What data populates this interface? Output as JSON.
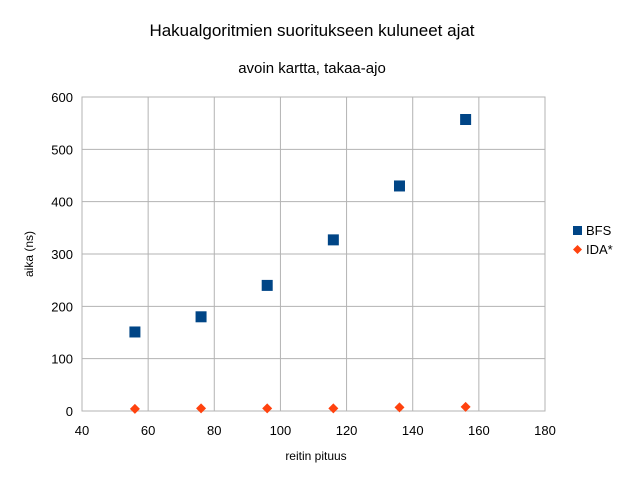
{
  "chart_data": {
    "type": "scatter",
    "title": "Hakualgoritmien suoritukseen kuluneet ajat",
    "subtitle": "avoin kartta, takaa-ajo",
    "xlabel": "reitin pituus",
    "ylabel": "aika (ns)",
    "xlim": [
      40,
      180
    ],
    "ylim": [
      0,
      600
    ],
    "xticks": [
      "40",
      "60",
      "80",
      "100",
      "120",
      "140",
      "160",
      "180"
    ],
    "yticks": [
      "0",
      "100",
      "200",
      "300",
      "400",
      "500",
      "600"
    ],
    "grid": true,
    "legend_position": "right",
    "series": [
      {
        "name": "BFS",
        "marker": "square",
        "color": "#004586",
        "x": [
          56,
          76,
          96,
          116,
          136,
          156
        ],
        "y": [
          151,
          180,
          240,
          327,
          430,
          557
        ]
      },
      {
        "name": "IDA*",
        "marker": "diamond",
        "color": "#ff420e",
        "x": [
          56,
          76,
          96,
          116,
          136,
          156
        ],
        "y": [
          4,
          5,
          5,
          5,
          7,
          8
        ]
      }
    ]
  }
}
